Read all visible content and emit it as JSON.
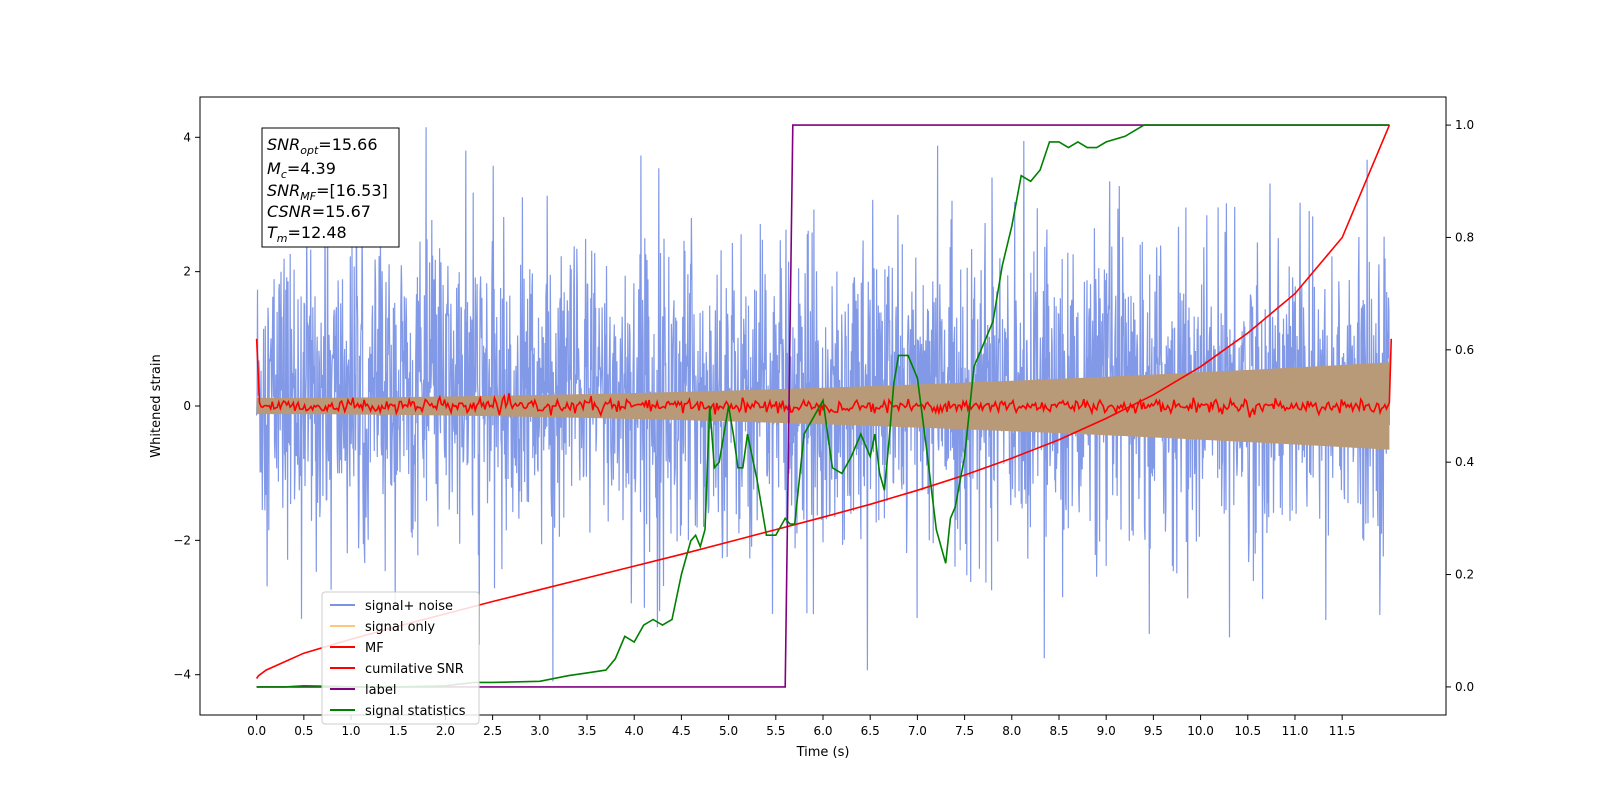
{
  "chart_data": {
    "type": "line",
    "xlabel": "Time (s)",
    "ylabel": "Whitened strain",
    "xlim": [
      -0.6,
      12.6
    ],
    "ylim": [
      -4.6,
      4.6
    ],
    "ylim_right": [
      -0.05,
      1.05
    ],
    "x_ticks": [
      "0.0",
      "0.5",
      "1.0",
      "1.5",
      "2.0",
      "2.5",
      "3.0",
      "3.5",
      "4.0",
      "4.5",
      "5.0",
      "5.5",
      "6.0",
      "6.5",
      "7.0",
      "7.5",
      "8.0",
      "8.5",
      "9.0",
      "9.5",
      "10.0",
      "10.5",
      "11.0",
      "11.5"
    ],
    "y_ticks": [
      "4",
      "2",
      "0",
      "−2",
      "−4"
    ],
    "y_ticks_right": [
      "1.0",
      "0.8",
      "0.6",
      "0.4",
      "0.2",
      "0.0"
    ],
    "annotation": {
      "snr_opt": "=15.66",
      "mc": "=4.39",
      "snr_mf": "=[16.53]",
      "csnr": "=15.67",
      "tm": "=12.48"
    },
    "legend_position": "lower-left",
    "series": [
      {
        "name": "signal+ noise",
        "color": "#7b93e6",
        "axis": "left",
        "description_values": "noise band roughly -2 to 2.5 with spikes to about ±4, t in [0, 12]"
      },
      {
        "name": "signal only",
        "color": "#ffc77a",
        "axis": "left",
        "envelope": {
          "x": [
            0,
            12
          ],
          "amplitude": [
            0.12,
            0.65
          ]
        }
      },
      {
        "name": "MF",
        "color": "#ff0000",
        "axis": "left",
        "x": [
          0,
          0.02,
          0.05,
          12,
          12.02
        ],
        "y": [
          1.0,
          0.1,
          0.0,
          0.0,
          1.0
        ]
      },
      {
        "name": "cumilative SNR",
        "color": "#ff0000",
        "axis": "right",
        "x": [
          0.0,
          0.02,
          0.1,
          0.3,
          0.5,
          1.0,
          1.5,
          2.0,
          2.5,
          3.0,
          3.5,
          4.0,
          4.5,
          5.0,
          5.5,
          6.0,
          6.5,
          7.0,
          7.5,
          8.0,
          8.5,
          9.0,
          9.5,
          10.0,
          10.5,
          11.0,
          11.5,
          12.0
        ],
        "y": [
          0.015,
          0.02,
          0.03,
          0.045,
          0.06,
          0.085,
          0.108,
          0.13,
          0.152,
          0.173,
          0.194,
          0.215,
          0.236,
          0.258,
          0.28,
          0.302,
          0.325,
          0.35,
          0.377,
          0.407,
          0.44,
          0.478,
          0.52,
          0.57,
          0.63,
          0.7,
          0.8,
          1.0
        ]
      },
      {
        "name": "label",
        "color": "#800080",
        "axis": "right",
        "x": [
          0.0,
          5.6,
          5.68,
          12.0
        ],
        "y": [
          0.0,
          0.0,
          1.0,
          1.0
        ]
      },
      {
        "name": "signal statistics",
        "color": "#008000",
        "axis": "right",
        "x": [
          0.0,
          0.3,
          0.5,
          0.8,
          1.0,
          1.5,
          2.0,
          2.3,
          2.5,
          3.0,
          3.3,
          3.5,
          3.7,
          3.8,
          3.9,
          4.0,
          4.1,
          4.2,
          4.3,
          4.4,
          4.5,
          4.6,
          4.65,
          4.7,
          4.75,
          4.8,
          4.85,
          4.9,
          5.0,
          5.05,
          5.1,
          5.15,
          5.2,
          5.3,
          5.4,
          5.5,
          5.6,
          5.65,
          5.7,
          5.8,
          5.9,
          6.0,
          6.1,
          6.2,
          6.3,
          6.4,
          6.5,
          6.55,
          6.6,
          6.65,
          6.7,
          6.75,
          6.8,
          6.9,
          7.0,
          7.1,
          7.2,
          7.3,
          7.35,
          7.4,
          7.5,
          7.6,
          7.8,
          7.9,
          8.0,
          8.1,
          8.2,
          8.3,
          8.4,
          8.5,
          8.6,
          8.7,
          8.8,
          8.9,
          9.0,
          9.2,
          9.3,
          9.4,
          9.5,
          10.0,
          10.5,
          11.0,
          11.5,
          12.0
        ],
        "y": [
          0.0,
          0.0,
          0.002,
          0.001,
          0.0,
          0.0,
          0.002,
          0.008,
          0.008,
          0.01,
          0.02,
          0.025,
          0.03,
          0.05,
          0.09,
          0.08,
          0.11,
          0.12,
          0.11,
          0.12,
          0.2,
          0.26,
          0.27,
          0.25,
          0.28,
          0.5,
          0.39,
          0.4,
          0.5,
          0.45,
          0.39,
          0.39,
          0.45,
          0.37,
          0.27,
          0.27,
          0.3,
          0.29,
          0.29,
          0.45,
          0.48,
          0.51,
          0.39,
          0.38,
          0.41,
          0.45,
          0.41,
          0.45,
          0.38,
          0.35,
          0.44,
          0.54,
          0.59,
          0.59,
          0.55,
          0.42,
          0.28,
          0.22,
          0.3,
          0.32,
          0.41,
          0.57,
          0.65,
          0.75,
          0.82,
          0.91,
          0.9,
          0.92,
          0.97,
          0.97,
          0.96,
          0.97,
          0.96,
          0.96,
          0.97,
          0.98,
          0.99,
          1.0,
          1.0,
          1.0,
          1.0,
          1.0,
          1.0,
          1.0
        ]
      }
    ]
  }
}
